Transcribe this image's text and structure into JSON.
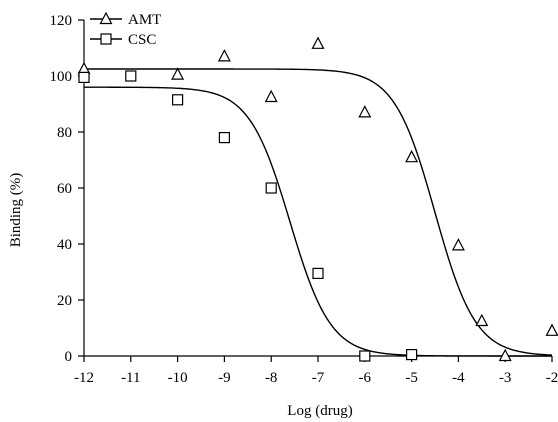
{
  "chart_data": {
    "type": "scatter",
    "xlabel": "Log (drug)",
    "ylabel": "Binding (%)",
    "xlim": [
      -12,
      -2
    ],
    "ylim": [
      0,
      120
    ],
    "x_ticks": [
      -12,
      -11,
      -10,
      -9,
      -8,
      -7,
      -6,
      -5,
      -4,
      -3,
      -2
    ],
    "y_ticks": [
      0,
      20,
      40,
      60,
      80,
      100,
      120
    ],
    "x_tick_labels": [
      "-12",
      "-11",
      "-10",
      "-9",
      "-8",
      "-7",
      "-6",
      "-5",
      "-4",
      "-3",
      "-2"
    ],
    "y_tick_labels": [
      "0",
      "20",
      "40",
      "60",
      "80",
      "100",
      "120"
    ],
    "grid": false,
    "legend_position": "top-left",
    "series": [
      {
        "name": "AMT",
        "marker": "triangle",
        "points": [
          {
            "x": -12,
            "y": 102.5
          },
          {
            "x": -10,
            "y": 100.5
          },
          {
            "x": -9,
            "y": 107
          },
          {
            "x": -8,
            "y": 92.5
          },
          {
            "x": -7,
            "y": 111.5
          },
          {
            "x": -6,
            "y": 87
          },
          {
            "x": -5,
            "y": 71
          },
          {
            "x": -4,
            "y": 39.5
          },
          {
            "x": -3.5,
            "y": 12.5
          },
          {
            "x": -3,
            "y": 0
          },
          {
            "x": -2,
            "y": 9
          }
        ],
        "fit": {
          "top": 102.5,
          "bottom": 0,
          "log_ic50": -4.5,
          "hill": -1
        }
      },
      {
        "name": "CSC",
        "marker": "square",
        "points": [
          {
            "x": -12,
            "y": 99.5
          },
          {
            "x": -11,
            "y": 100
          },
          {
            "x": -10,
            "y": 91.5
          },
          {
            "x": -9,
            "y": 78
          },
          {
            "x": -8,
            "y": 60
          },
          {
            "x": -7,
            "y": 29.5
          },
          {
            "x": -6,
            "y": 0
          },
          {
            "x": -5,
            "y": 0.5
          }
        ],
        "fit": {
          "top": 96,
          "bottom": 0,
          "log_ic50": -7.6,
          "hill": -1
        }
      }
    ]
  }
}
